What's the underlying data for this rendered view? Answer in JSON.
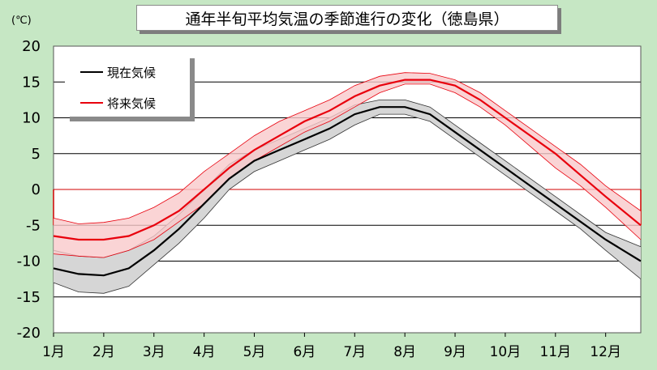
{
  "chart_data": {
    "type": "line",
    "title": "通年半旬平均気温の季節進行の変化（徳島県）",
    "unit_label": "(℃)",
    "ylim": [
      -20,
      20
    ],
    "yticks": [
      20,
      15,
      10,
      5,
      0,
      -5,
      -10,
      -15,
      -20
    ],
    "months": [
      "1月",
      "2月",
      "3月",
      "4月",
      "5月",
      "6月",
      "7月",
      "8月",
      "9月",
      "10月",
      "11月",
      "12月"
    ],
    "x_unit": "month",
    "grid": true,
    "legend_position": "top-left",
    "colors": {
      "current": "#000000",
      "current_band": "#d6d6d6",
      "future": "#e8000d",
      "future_band": "#f9c9cb",
      "zero_line": "#d00000"
    },
    "x": [
      1.0,
      1.5,
      2.0,
      2.5,
      3.0,
      3.5,
      4.0,
      4.5,
      5.0,
      5.5,
      6.0,
      6.5,
      7.0,
      7.5,
      8.0,
      8.5,
      9.0,
      9.5,
      10.0,
      10.5,
      11.0,
      11.5,
      12.0,
      12.7
    ],
    "series": [
      {
        "name": "現在気候",
        "values": [
          -11.0,
          -11.8,
          -12.0,
          -11.0,
          -8.5,
          -5.5,
          -2.0,
          1.5,
          4.0,
          5.5,
          7.0,
          8.5,
          10.5,
          11.5,
          11.5,
          10.5,
          8.0,
          5.5,
          3.0,
          0.5,
          -2.0,
          -4.5,
          -7.0,
          -10.0
        ],
        "upper": [
          -8.5,
          -9.3,
          -9.5,
          -8.5,
          -6.5,
          -3.5,
          0.0,
          3.5,
          5.5,
          7.0,
          8.5,
          10.0,
          11.8,
          12.5,
          12.5,
          11.5,
          9.0,
          6.5,
          4.0,
          1.5,
          -1.0,
          -3.5,
          -6.0,
          -8.0
        ],
        "lower": [
          -13.0,
          -14.3,
          -14.5,
          -13.5,
          -10.5,
          -7.5,
          -4.0,
          0.0,
          2.5,
          4.0,
          5.5,
          7.0,
          9.0,
          10.5,
          10.5,
          9.5,
          7.0,
          4.5,
          2.0,
          -0.5,
          -3.0,
          -5.5,
          -8.5,
          -12.5
        ]
      },
      {
        "name": "将来気候",
        "values": [
          -6.5,
          -7.0,
          -7.0,
          -6.5,
          -5.0,
          -3.0,
          0.0,
          3.0,
          5.5,
          7.5,
          9.5,
          11.0,
          13.0,
          14.5,
          15.3,
          15.3,
          14.5,
          12.5,
          10.0,
          7.5,
          5.0,
          2.0,
          -1.0,
          -5.0
        ],
        "upper": [
          -4.0,
          -4.8,
          -4.6,
          -4.0,
          -2.5,
          -0.5,
          2.5,
          5.0,
          7.5,
          9.5,
          11.0,
          12.5,
          14.5,
          15.8,
          16.3,
          16.2,
          15.3,
          13.5,
          11.0,
          8.5,
          6.0,
          3.5,
          0.5,
          -3.0
        ],
        "lower": [
          -9.0,
          -9.3,
          -9.5,
          -8.5,
          -7.0,
          -4.5,
          -2.0,
          1.5,
          4.0,
          6.0,
          8.0,
          9.5,
          11.5,
          13.5,
          14.7,
          14.7,
          13.5,
          11.5,
          9.0,
          6.0,
          3.0,
          0.5,
          -2.5,
          -7.0
        ]
      }
    ]
  }
}
